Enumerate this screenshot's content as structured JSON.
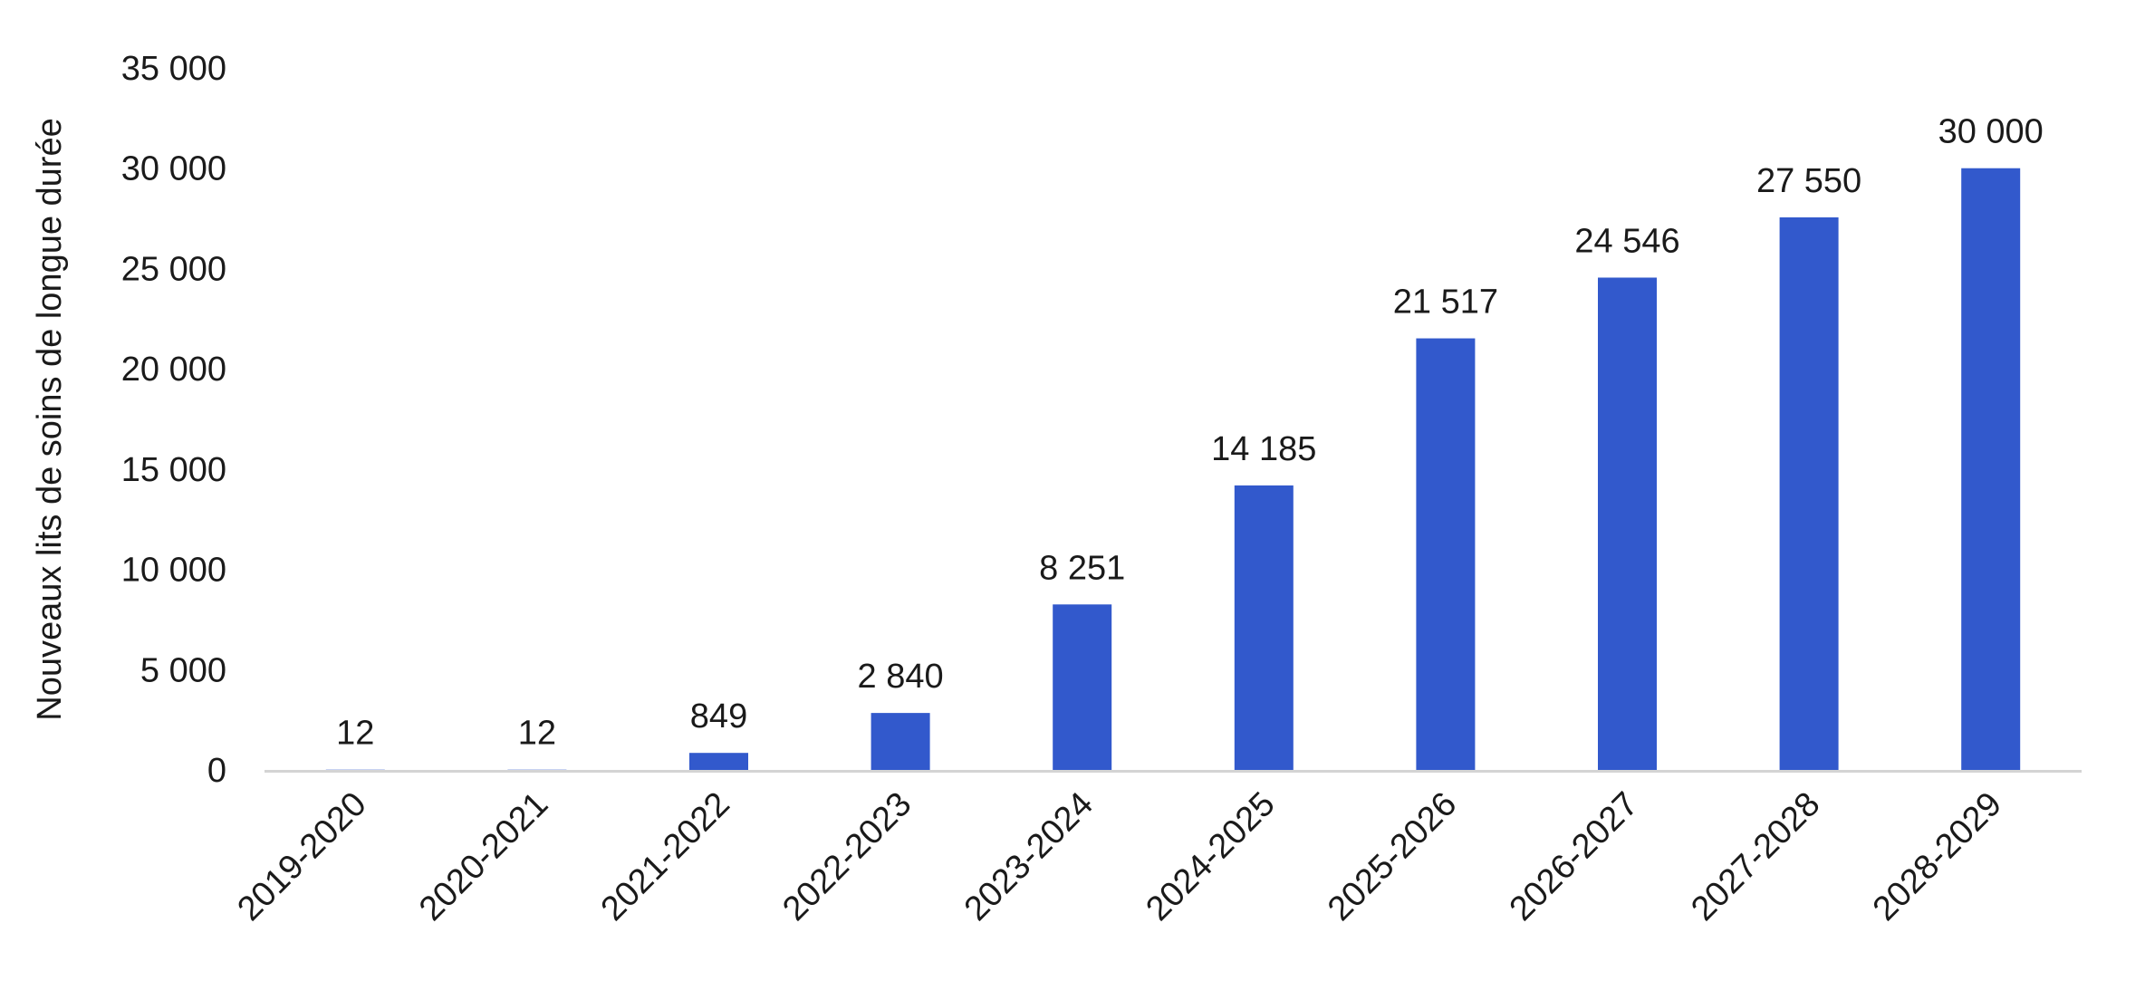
{
  "chart_data": {
    "type": "bar",
    "title": "",
    "xlabel": "",
    "ylabel": "Nouveaux lits de soins de longue durée",
    "categories": [
      "2019-2020",
      "2020-2021",
      "2021-2022",
      "2022-2023",
      "2023-2024",
      "2024-2025",
      "2025-2026",
      "2026-2027",
      "2027-2028",
      "2028-2029"
    ],
    "values": [
      12,
      12,
      849,
      2840,
      8251,
      14185,
      21517,
      24546,
      27550,
      30000
    ],
    "data_labels": [
      "12",
      "12",
      "849",
      "2 840",
      "8 251",
      "14 185",
      "21 517",
      "24 546",
      "27 550",
      "30 000"
    ],
    "ylim": [
      0,
      35000
    ],
    "yticks": [
      0,
      5000,
      10000,
      15000,
      20000,
      25000,
      30000,
      35000
    ],
    "ytick_labels": [
      "0",
      "5 000",
      "10 000",
      "15 000",
      "20 000",
      "25 000",
      "30 000",
      "35 000"
    ],
    "grid": false,
    "legend": "none",
    "colors": {
      "bar": "#3259CC",
      "axis": "#d4d4d4",
      "text": "#1a1a1a"
    }
  }
}
